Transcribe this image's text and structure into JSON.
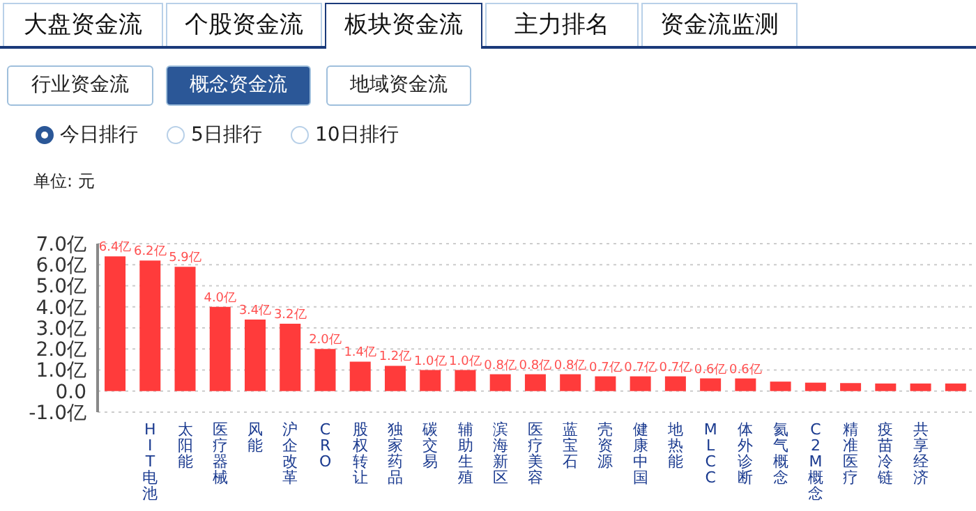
{
  "chart_data": {
    "type": "bar",
    "annotations": [
      "大盘资金流",
      "个股资金流",
      "板块资金流",
      "主力排名",
      "资金流监测",
      "行业资金流",
      "概念资金流",
      "地域资金流",
      "今日排行",
      "5日排行",
      "10日排行",
      "单位: 元"
    ],
    "categories": [
      null,
      "HIT电池",
      "太阳能",
      "医疗器械",
      "风能",
      "沪企改革",
      "CRO",
      "股权转让",
      "独家药品",
      "碳交易",
      "辅助生殖",
      "滨海新区",
      "医疗美容",
      "蓝宝石",
      "壳资源",
      "健康中国",
      "地热能",
      "MLCC",
      "体外诊断",
      "氦气概念",
      "C2M概念",
      "精准医疗",
      "疫苗冷链",
      "共享经济",
      null
    ],
    "values": [
      6.4,
      6.2,
      5.9,
      4.0,
      3.4,
      3.2,
      2.0,
      1.4,
      1.2,
      1.0,
      1.0,
      0.8,
      0.8,
      0.8,
      0.7,
      0.7,
      0.7,
      0.6,
      0.6,
      0.45,
      0.4,
      0.38,
      0.36,
      0.36,
      0.36
    ],
    "value_labels": [
      "6.4亿",
      "6.2亿",
      "5.9亿",
      "4.0亿",
      "3.4亿",
      "3.2亿",
      "2.0亿",
      "1.4亿",
      "1.2亿",
      "1.0亿",
      "1.0亿",
      "0.8亿",
      "0.8亿",
      "0.8亿",
      "0.7亿",
      "0.7亿",
      "0.7亿",
      "0.6亿",
      "0.6亿",
      null,
      null,
      null,
      null,
      null,
      null
    ],
    "color": "#ff3b3b",
    "ylim": [
      -1,
      7
    ],
    "yticks": [
      {
        "value": -1,
        "label": "-1.0亿"
      },
      {
        "value": 0,
        "label": "0.0"
      },
      {
        "value": 1,
        "label": "1.0亿"
      },
      {
        "value": 2,
        "label": "2.0亿"
      },
      {
        "value": 3,
        "label": "3.0亿"
      },
      {
        "value": 4,
        "label": "4.0亿"
      },
      {
        "value": 5,
        "label": "5.0亿"
      },
      {
        "value": 6,
        "label": "6.0亿"
      },
      {
        "value": 7,
        "label": "7.0亿"
      }
    ],
    "grid": "y"
  }
}
